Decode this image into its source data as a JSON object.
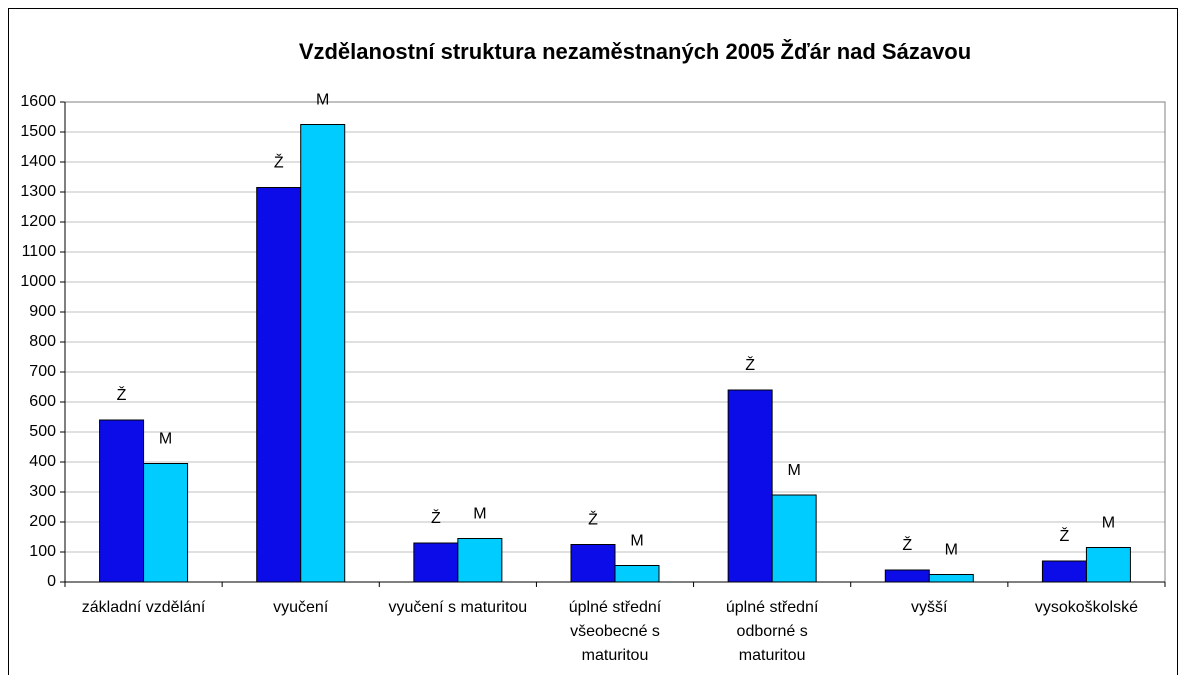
{
  "chart_data": {
    "type": "bar",
    "title": "Vzdělanostní struktura nezaměstnaných 2005 Žďár nad Sázavou",
    "categories": [
      "základní vzdělání",
      "vyučení",
      "vyučení s maturitou",
      "úplné střední všeobecné s maturitou",
      "úplné střední odborné s maturitou",
      "vyšší",
      "vysokoškolské"
    ],
    "series": [
      {
        "name": "Ž",
        "color": "#0c0ce8",
        "values": [
          540,
          1315,
          130,
          125,
          640,
          40,
          70
        ]
      },
      {
        "name": "M",
        "color": "#00ccff",
        "values": [
          395,
          1525,
          145,
          55,
          290,
          25,
          115
        ]
      }
    ],
    "ylim": [
      0,
      1600
    ],
    "yticks": [
      0,
      100,
      200,
      300,
      400,
      500,
      600,
      700,
      800,
      900,
      1000,
      1100,
      1200,
      1300,
      1400,
      1500,
      1600
    ],
    "grid": true
  }
}
